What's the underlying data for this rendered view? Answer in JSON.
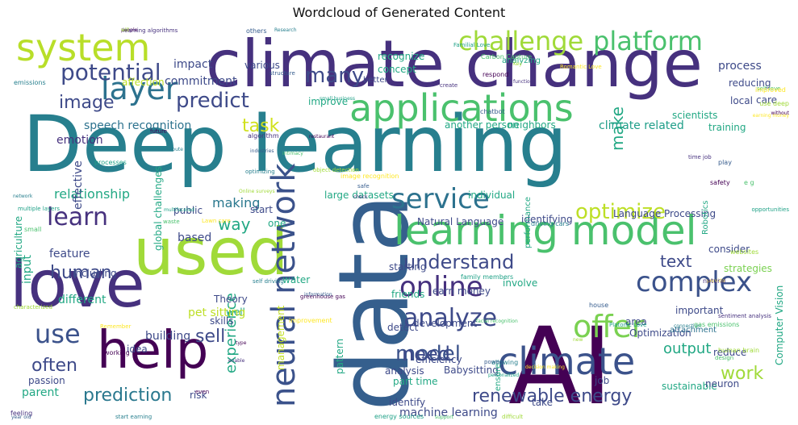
{
  "title": "Wordcloud of Generated Content",
  "palette": [
    "#440154",
    "#46317e",
    "#365c8d",
    "#277f8e",
    "#1fa187",
    "#4ac16d",
    "#a0da39",
    "#fde725"
  ],
  "words": [
    {
      "text": "Deep learning",
      "c": "#277f8e"
    },
    {
      "text": "climate change",
      "c": "#46317e"
    },
    {
      "text": "data",
      "c": "#355f8d"
    },
    {
      "text": "AI",
      "c": "#440154"
    },
    {
      "text": "love",
      "c": "#46317e"
    },
    {
      "text": "used",
      "c": "#a0da39"
    },
    {
      "text": "help",
      "c": "#440154"
    },
    {
      "text": "learning model",
      "c": "#4ac16d"
    },
    {
      "text": "applications",
      "c": "#4ac16d"
    },
    {
      "text": "climate",
      "c": "#3b528b"
    },
    {
      "text": "neural network",
      "c": "#3b528b"
    },
    {
      "text": "system",
      "c": "#b8de29"
    },
    {
      "text": "layer",
      "c": "#2c728e"
    },
    {
      "text": "challenge",
      "c": "#a0da39"
    },
    {
      "text": "platform",
      "c": "#4ac16d"
    },
    {
      "text": "potential",
      "c": "#3e4a89"
    },
    {
      "text": "service",
      "c": "#2c728e"
    },
    {
      "text": "complex",
      "c": "#3b528b"
    },
    {
      "text": "offer",
      "c": "#7ad151"
    },
    {
      "text": "online",
      "c": "#46317e"
    },
    {
      "text": "analyze",
      "c": "#3e4a89"
    },
    {
      "text": "model",
      "c": "#3b528b"
    },
    {
      "text": "learn",
      "c": "#46317e"
    },
    {
      "text": "predict",
      "c": "#3e4a89"
    },
    {
      "text": "many",
      "c": "#3e4a89"
    },
    {
      "text": "image",
      "c": "#3e4a89"
    },
    {
      "text": "optimize",
      "c": "#bddf26"
    },
    {
      "text": "understand",
      "c": "#3e4a89"
    },
    {
      "text": "prediction",
      "c": "#2a788e"
    },
    {
      "text": "renewable energy",
      "c": "#3e4a89"
    },
    {
      "text": "use",
      "c": "#3b528b"
    },
    {
      "text": "sell",
      "c": "#3e4a89"
    },
    {
      "text": "often",
      "c": "#3e4a89"
    },
    {
      "text": "need",
      "c": "#3e4a89"
    },
    {
      "text": "work",
      "c": "#a0da39"
    },
    {
      "text": "output",
      "c": "#22a884"
    },
    {
      "text": "text",
      "c": "#3e4a89"
    },
    {
      "text": "human",
      "c": "#3e4a89"
    },
    {
      "text": "task",
      "c": "#d0e11c"
    },
    {
      "text": "make",
      "c": "#22a884"
    },
    {
      "text": "way",
      "c": "#22a884"
    },
    {
      "text": "making",
      "c": "#2a788e"
    },
    {
      "text": "relationship",
      "c": "#22a884"
    },
    {
      "text": "experience",
      "c": "#22a884"
    },
    {
      "text": "management",
      "c": "#c2df23"
    },
    {
      "text": "speech recognition",
      "c": "#2c728e"
    },
    {
      "text": "climate related",
      "c": "#1f9e89"
    },
    {
      "text": "process",
      "c": "#3e4a89"
    },
    {
      "text": "reducing",
      "c": "#3e4a89"
    },
    {
      "text": "care",
      "c": "#3e4a89"
    },
    {
      "text": "local",
      "c": "#3e4a89"
    },
    {
      "text": "impact",
      "c": "#3e4a89"
    },
    {
      "text": "commitment",
      "c": "#3e4a89"
    },
    {
      "text": "various",
      "c": "#3e4a89"
    },
    {
      "text": "recognize",
      "c": "#22a884"
    },
    {
      "text": "concept",
      "c": "#22a884"
    },
    {
      "text": "analyzing",
      "c": "#22a884"
    },
    {
      "text": "emotion",
      "c": "#46317e"
    },
    {
      "text": "affection",
      "c": "#bddf26"
    },
    {
      "text": "improve",
      "c": "#22a884"
    },
    {
      "text": "scientists",
      "c": "#22a884"
    },
    {
      "text": "training",
      "c": "#22a884"
    },
    {
      "text": "another person",
      "c": "#22a884"
    },
    {
      "text": "neighbors",
      "c": "#22a884"
    },
    {
      "text": "large datasets",
      "c": "#22a884"
    },
    {
      "text": "individual",
      "c": "#22a884"
    },
    {
      "text": "Language Processing",
      "c": "#3e4a89"
    },
    {
      "text": "Natural Language",
      "c": "#3e4a89"
    },
    {
      "text": "identifying",
      "c": "#3e4a89"
    },
    {
      "text": "consider",
      "c": "#3e4a89"
    },
    {
      "text": "feature",
      "c": "#3e4a89"
    },
    {
      "text": "public",
      "c": "#3e4a89"
    },
    {
      "text": "based",
      "c": "#3e4a89"
    },
    {
      "text": "input",
      "c": "#22a884"
    },
    {
      "text": "including",
      "c": "#3e4a89"
    },
    {
      "text": "different",
      "c": "#22a884"
    },
    {
      "text": "friends",
      "c": "#22a884"
    },
    {
      "text": "involve",
      "c": "#22a884"
    },
    {
      "text": "earn money",
      "c": "#3e4a89"
    },
    {
      "text": "starting",
      "c": "#3e4a89"
    },
    {
      "text": "strategies",
      "c": "#7ad151"
    },
    {
      "text": "detect",
      "c": "#3e4a89"
    },
    {
      "text": "development",
      "c": "#3e4a89"
    },
    {
      "text": "water",
      "c": "#22a884"
    },
    {
      "text": "Theory",
      "c": "#3e4a89"
    },
    {
      "text": "well",
      "c": "#22a884"
    },
    {
      "text": "skills",
      "c": "#3e4a89"
    },
    {
      "text": "pet sitting",
      "c": "#bddf26"
    },
    {
      "text": "building",
      "c": "#3e4a89"
    },
    {
      "text": "idea",
      "c": "#3e4a89"
    },
    {
      "text": "efficiency",
      "c": "#3e4a89"
    },
    {
      "text": "Babysitting",
      "c": "#3e4a89"
    },
    {
      "text": "analysis",
      "c": "#3e4a89"
    },
    {
      "text": "Optimization",
      "c": "#3e4a89"
    },
    {
      "text": "area",
      "c": "#3e4a89"
    },
    {
      "text": "attachment",
      "c": "#2c728e"
    },
    {
      "text": "important",
      "c": "#3e4a89"
    },
    {
      "text": "reduce",
      "c": "#3e4a89"
    },
    {
      "text": "job",
      "c": "#3e4a89"
    },
    {
      "text": "sustainable",
      "c": "#22a884"
    },
    {
      "text": "neuron",
      "c": "#3e4a89"
    },
    {
      "text": "part time",
      "c": "#22a884"
    },
    {
      "text": "identify",
      "c": "#3e4a89"
    },
    {
      "text": "machine learning",
      "c": "#3e4a89"
    },
    {
      "text": "take",
      "c": "#3e4a89"
    },
    {
      "text": "passion",
      "c": "#3e4a89"
    },
    {
      "text": "parent",
      "c": "#22a884"
    },
    {
      "text": "risk",
      "c": "#3e4a89"
    },
    {
      "text": "one",
      "c": "#22a884"
    },
    {
      "text": "start",
      "c": "#3e4a89"
    },
    {
      "text": "Robotics",
      "c": "#22a884"
    },
    {
      "text": "Computer Vision",
      "c": "#22a884"
    },
    {
      "text": "performance",
      "c": "#22a884"
    },
    {
      "text": "effective",
      "c": "#3e4a89"
    },
    {
      "text": "global challenges",
      "c": "#22a884"
    },
    {
      "text": "agriculture",
      "c": "#22a884"
    },
    {
      "text": "pattern",
      "c": "#22a884"
    },
    {
      "text": "ensure",
      "c": "#22a884"
    },
    {
      "text": "better",
      "c": "#3e4a89"
    }
  ],
  "small_words": [
    "people",
    "learning algorithms",
    "others",
    "Research",
    "Familial Love",
    "Carbon Capture",
    "Key",
    "Romantic Love",
    "respond",
    "function",
    "structure",
    "emissions",
    "small business",
    "self love",
    "use deep",
    "earning money",
    "future",
    "algorithm",
    "industries",
    "optimizing",
    "processes",
    "intimacy",
    "object detection",
    "image recognition",
    "restaurant",
    "time job",
    "play",
    "network",
    "multiple layers",
    "small",
    "Online surveys",
    "Lawn care",
    "safety",
    "check",
    "safe",
    "driving cars",
    "multifaceted",
    "waste",
    "websites",
    "provide",
    "greenhouse gas",
    "natural",
    "information",
    "self driving",
    "family members",
    "facial recognition",
    "characterized",
    "improvement",
    "type",
    "sentiment analysis",
    "house",
    "connection",
    "Platonic Love",
    "gas emissions",
    "new",
    "Remember",
    "working",
    "enable",
    "power",
    "allowing",
    "personalized",
    "design",
    "human brain",
    "decision making",
    "even",
    "feeling",
    "year old",
    "start earning",
    "energy sources",
    "support",
    "difficult",
    "improved",
    "without",
    "create",
    "chatbot",
    "contribute",
    "opportunities",
    "e g",
    "will"
  ]
}
